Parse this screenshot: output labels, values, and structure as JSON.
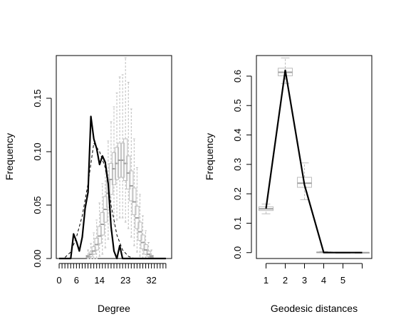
{
  "chart_data": [
    {
      "type": "line",
      "xlabel": "Degree",
      "ylabel": "Frequency",
      "xlim": [
        -1,
        39
      ],
      "ylim": [
        0,
        0.19
      ],
      "x_tick_labels": [
        "0",
        "6",
        "14",
        "23",
        "32"
      ],
      "x_tick_values": [
        0,
        6,
        14,
        23,
        32
      ],
      "y_tick_labels": [
        "0.00",
        "0.05",
        "0.10",
        "0.15"
      ],
      "y_tick_values": [
        0,
        0.05,
        0.1,
        0.15
      ],
      "grid": false,
      "observed": {
        "x": [
          0,
          1,
          2,
          3,
          4,
          5,
          6,
          7,
          8,
          9,
          10,
          11,
          12,
          13,
          14,
          15,
          16,
          17,
          18,
          19,
          20,
          21,
          22,
          23,
          24,
          25,
          26,
          27,
          28,
          29,
          30,
          31,
          32,
          33,
          34,
          35,
          36,
          37
        ],
        "y": [
          0,
          0,
          0,
          0,
          0,
          0.023,
          0.016,
          0.007,
          0.02,
          0.047,
          0.062,
          0.133,
          0.112,
          0.103,
          0.088,
          0.096,
          0.09,
          0.07,
          0.03,
          0.007,
          0,
          0.012,
          0,
          0,
          0,
          0,
          0,
          0,
          0,
          0,
          0,
          0,
          0,
          0,
          0,
          0,
          0,
          0
        ]
      },
      "simulated_mean": {
        "x": [
          2,
          4,
          6,
          8,
          10,
          12,
          14,
          16,
          18,
          20,
          22,
          24,
          26
        ],
        "y": [
          0.001,
          0.006,
          0.02,
          0.04,
          0.07,
          0.108,
          0.1,
          0.085,
          0.05,
          0.022,
          0.008,
          0.002,
          0
        ]
      },
      "boxplots": [
        {
          "x": 10,
          "q1": 0.001,
          "median": 0.002,
          "q3": 0.003,
          "low": 0,
          "high": 0.008
        },
        {
          "x": 11,
          "q1": 0.002,
          "median": 0.004,
          "q3": 0.006,
          "low": 0,
          "high": 0.014
        },
        {
          "x": 12,
          "q1": 0.004,
          "median": 0.007,
          "q3": 0.011,
          "low": 0,
          "high": 0.024
        },
        {
          "x": 13,
          "q1": 0.008,
          "median": 0.013,
          "q3": 0.019,
          "low": 0,
          "high": 0.036
        },
        {
          "x": 14,
          "q1": 0.014,
          "median": 0.021,
          "q3": 0.03,
          "low": 0.002,
          "high": 0.052
        },
        {
          "x": 15,
          "q1": 0.022,
          "median": 0.032,
          "q3": 0.043,
          "low": 0.004,
          "high": 0.07
        },
        {
          "x": 16,
          "q1": 0.034,
          "median": 0.046,
          "q3": 0.058,
          "low": 0.01,
          "high": 0.09
        },
        {
          "x": 17,
          "q1": 0.048,
          "median": 0.061,
          "q3": 0.074,
          "low": 0.018,
          "high": 0.11
        },
        {
          "x": 18,
          "q1": 0.06,
          "median": 0.074,
          "q3": 0.089,
          "low": 0.026,
          "high": 0.128
        },
        {
          "x": 19,
          "q1": 0.069,
          "median": 0.084,
          "q3": 0.099,
          "low": 0.032,
          "high": 0.142
        },
        {
          "x": 20,
          "q1": 0.074,
          "median": 0.089,
          "q3": 0.104,
          "low": 0.036,
          "high": 0.155
        },
        {
          "x": 21,
          "q1": 0.076,
          "median": 0.092,
          "q3": 0.108,
          "low": 0.038,
          "high": 0.17
        },
        {
          "x": 22,
          "q1": 0.076,
          "median": 0.092,
          "q3": 0.108,
          "low": 0.038,
          "high": 0.172
        },
        {
          "x": 23,
          "q1": 0.073,
          "median": 0.089,
          "q3": 0.112,
          "low": 0.034,
          "high": 0.188
        },
        {
          "x": 24,
          "q1": 0.065,
          "median": 0.08,
          "q3": 0.096,
          "low": 0.028,
          "high": 0.165
        },
        {
          "x": 25,
          "q1": 0.054,
          "median": 0.068,
          "q3": 0.082,
          "low": 0.02,
          "high": 0.14
        },
        {
          "x": 26,
          "q1": 0.041,
          "median": 0.053,
          "q3": 0.066,
          "low": 0.012,
          "high": 0.112
        },
        {
          "x": 27,
          "q1": 0.028,
          "median": 0.038,
          "q3": 0.049,
          "low": 0.006,
          "high": 0.085
        },
        {
          "x": 28,
          "q1": 0.017,
          "median": 0.025,
          "q3": 0.034,
          "low": 0.002,
          "high": 0.06
        },
        {
          "x": 29,
          "q1": 0.009,
          "median": 0.015,
          "q3": 0.022,
          "low": 0,
          "high": 0.04
        },
        {
          "x": 30,
          "q1": 0.004,
          "median": 0.008,
          "q3": 0.013,
          "low": 0,
          "high": 0.026
        },
        {
          "x": 31,
          "q1": 0.002,
          "median": 0.004,
          "q3": 0.007,
          "low": 0,
          "high": 0.015
        },
        {
          "x": 32,
          "q1": 0.001,
          "median": 0.002,
          "q3": 0.003,
          "low": 0,
          "high": 0.008
        }
      ]
    },
    {
      "type": "line",
      "xlabel": "Geodesic distances",
      "ylabel": "Frequency",
      "xlim": [
        0.5,
        6.5
      ],
      "ylim": [
        -0.02,
        0.67
      ],
      "x_tick_labels": [
        "1",
        "2",
        "3",
        "4",
        "5"
      ],
      "x_tick_values": [
        1,
        2,
        3,
        4,
        5
      ],
      "y_tick_labels": [
        "0.0",
        "0.1",
        "0.2",
        "0.3",
        "0.4",
        "0.5",
        "0.6"
      ],
      "y_tick_values": [
        0,
        0.1,
        0.2,
        0.3,
        0.4,
        0.5,
        0.6
      ],
      "grid": false,
      "observed": {
        "x": [
          1,
          2,
          3,
          4,
          5,
          6
        ],
        "y": [
          0.15,
          0.62,
          0.23,
          0,
          0,
          0
        ]
      },
      "simulated_mean": {
        "x": [
          1,
          2,
          3,
          4,
          5,
          6
        ],
        "y": [
          0.15,
          0.615,
          0.235,
          0.002,
          0,
          0
        ]
      },
      "boxplots": [
        {
          "x": 1,
          "q1": 0.143,
          "median": 0.149,
          "q3": 0.156,
          "low": 0.132,
          "high": 0.165
        },
        {
          "x": 2,
          "q1": 0.601,
          "median": 0.613,
          "q3": 0.627,
          "low": 0.575,
          "high": 0.662
        },
        {
          "x": 3,
          "q1": 0.222,
          "median": 0.236,
          "q3": 0.256,
          "low": 0.18,
          "high": 0.305
        },
        {
          "x": 4,
          "q1": 0,
          "median": 0.001,
          "q3": 0.002,
          "low": 0,
          "high": 0.004
        },
        {
          "x": 5,
          "q1": 0,
          "median": 0,
          "q3": 0,
          "low": 0,
          "high": 0
        },
        {
          "x": 6,
          "q1": 0,
          "median": 0,
          "q3": 0,
          "low": 0,
          "high": 0
        }
      ]
    }
  ]
}
